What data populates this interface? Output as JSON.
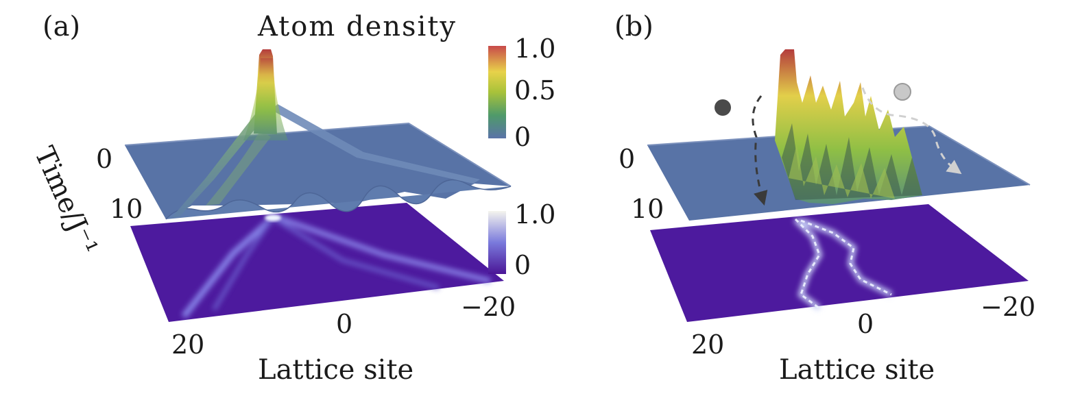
{
  "panels": [
    {
      "id": "a",
      "label": "(a)",
      "title": "Atom density",
      "x_axis_label": "Lattice site",
      "x_ticks": [
        "20",
        "0",
        "−20"
      ],
      "time_axis_label": "Time/J⁻¹",
      "time_ticks": [
        "0",
        "10"
      ],
      "colorbar_surface": {
        "ticks": [
          "1.0",
          "0.5",
          "0"
        ],
        "range": [
          0,
          1.0
        ]
      },
      "colorbar_map": {
        "ticks": [
          "1.0",
          "0"
        ],
        "range": [
          0,
          1.0
        ]
      },
      "dynamics": "ballistic light-cone spreading from central site"
    },
    {
      "id": "b",
      "label": "(b)",
      "x_axis_label": "Lattice site",
      "x_ticks": [
        "20",
        "0",
        "−20"
      ],
      "time_ticks": [
        "0",
        "10"
      ],
      "dynamics": "localized wandering strands",
      "markers": [
        {
          "name": "dark-particle",
          "color": "#4a4a4a"
        },
        {
          "name": "light-particle",
          "color": "#c8c8c8"
        }
      ]
    }
  ],
  "colors": {
    "surface_base": "#5873a6",
    "heatmap_base": "#4d1a9e",
    "heatmap_bright": "#e6f0ff",
    "text": "#1a1a1a"
  }
}
